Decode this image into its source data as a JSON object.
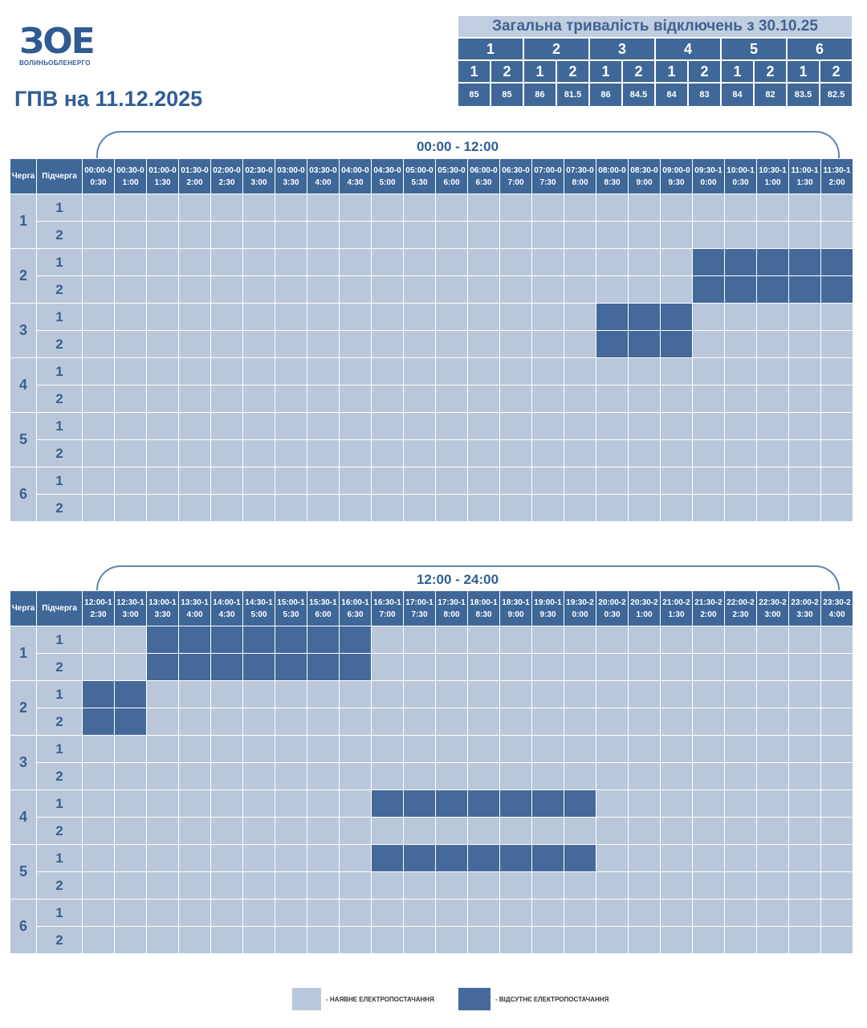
{
  "logo": {
    "mark": "ЗОЕ",
    "name": "ВОЛИНЬОБЛЕНЕРГО"
  },
  "title": "ГПВ на 11.12.2025",
  "summary": {
    "title": "Загальна тривалість відключень з 30.10.25",
    "queues": [
      "1",
      "2",
      "3",
      "4",
      "5",
      "6"
    ],
    "subqueues": [
      "1",
      "2",
      "1",
      "2",
      "1",
      "2",
      "1",
      "2",
      "1",
      "2",
      "1",
      "2"
    ],
    "values": [
      "85",
      "85",
      "86",
      "81.5",
      "86",
      "84.5",
      "84",
      "83",
      "84",
      "82",
      "83.5",
      "82.5"
    ]
  },
  "colors": {
    "available": "#b8c8da",
    "outage": "#44699a",
    "header": "#3f6898"
  },
  "headers": {
    "queue": "Черга",
    "subqueue": "Підчерга"
  },
  "queues": [
    "1",
    "2",
    "3",
    "4",
    "5",
    "6"
  ],
  "subqueues": [
    "1",
    "2"
  ],
  "halves": [
    {
      "label": "00:00 - 12:00",
      "slots": [
        "00:00-00:30",
        "00:30-01:00",
        "01:00-01:30",
        "01:30-02:00",
        "02:00-02:30",
        "02:30-03:00",
        "03:00-03:30",
        "03:30-04:00",
        "04:00-04:30",
        "04:30-05:00",
        "05:00-05:30",
        "05:30-06:00",
        "06:00-06:30",
        "06:30-07:00",
        "07:00-07:30",
        "07:30-08:00",
        "08:00-08:30",
        "08:30-09:00",
        "09:00-09:30",
        "09:30-10:00",
        "10:00-10:30",
        "10:30-11:00",
        "11:00-11:30",
        "11:30-12:00"
      ],
      "outages": {
        "2.1": [
          19,
          20,
          21,
          22,
          23
        ],
        "2.2": [
          19,
          20,
          21,
          22,
          23
        ],
        "3.1": [
          16,
          17,
          18
        ],
        "3.2": [
          16,
          17,
          18
        ]
      }
    },
    {
      "label": "12:00 - 24:00",
      "slots": [
        "12:00-12:30",
        "12:30-13:00",
        "13:00-13:30",
        "13:30-14:00",
        "14:00-14:30",
        "14:30-15:00",
        "15:00-15:30",
        "15:30-16:00",
        "16:00-16:30",
        "16:30-17:00",
        "17:00-17:30",
        "17:30-18:00",
        "18:00-18:30",
        "18:30-19:00",
        "19:00-19:30",
        "19:30-20:00",
        "20:00-20:30",
        "20:30-21:00",
        "21:00-21:30",
        "21:30-22:00",
        "22:00-22:30",
        "22:30-23:00",
        "23:00-23:30",
        "23:30-24:00"
      ],
      "outages": {
        "1.1": [
          2,
          3,
          4,
          5,
          6,
          7,
          8
        ],
        "1.2": [
          2,
          3,
          4,
          5,
          6,
          7,
          8
        ],
        "2.1": [
          0,
          1
        ],
        "2.2": [
          0,
          1
        ],
        "4.1": [
          9,
          10,
          11,
          12,
          13,
          14,
          15
        ],
        "5.1": [
          9,
          10,
          11,
          12,
          13,
          14,
          15
        ]
      }
    }
  ],
  "legend": {
    "available": "- НАЯВНЕ ЕЛЕКТРОПОСТАЧАННЯ",
    "outage": "- ВІДСУТНЄ ЕЛЕКТРОПОСТАЧАННЯ"
  }
}
